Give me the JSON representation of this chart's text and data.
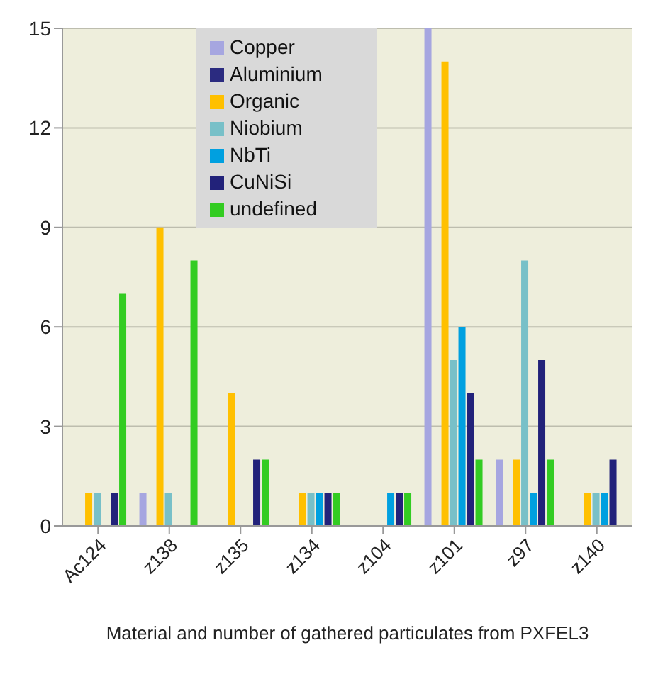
{
  "chart_data": {
    "type": "bar",
    "xlabel": "Material and number of gathered particulates from PXFEL3",
    "categories": [
      "Ac124",
      "z138",
      "z135",
      "z134",
      "z104",
      "z101",
      "z97",
      "z140"
    ],
    "series": [
      {
        "name": "Copper",
        "color": "#a6a6e0",
        "values": [
          0,
          1,
          0,
          0,
          0,
          15,
          2,
          0
        ]
      },
      {
        "name": "Aluminium",
        "color": "#2b2b80",
        "values": [
          0,
          0,
          0,
          0,
          0,
          0,
          0,
          0
        ]
      },
      {
        "name": "Organic",
        "color": "#ffc000",
        "values": [
          1,
          9,
          4,
          1,
          0,
          14,
          2,
          1
        ]
      },
      {
        "name": "Niobium",
        "color": "#78c0c8",
        "values": [
          1,
          1,
          0,
          1,
          0,
          5,
          8,
          1
        ]
      },
      {
        "name": "NbTi",
        "color": "#00a0e0",
        "values": [
          0,
          0,
          0,
          1,
          1,
          6,
          1,
          1
        ]
      },
      {
        "name": "CuNiSi",
        "color": "#22227a",
        "values": [
          1,
          0,
          2,
          1,
          1,
          4,
          5,
          2
        ]
      },
      {
        "name": "undefined",
        "color": "#33cc22",
        "values": [
          7,
          8,
          2,
          1,
          1,
          2,
          2,
          0
        ]
      }
    ],
    "ylim": [
      0,
      15
    ],
    "yticks": [
      0,
      3,
      6,
      9,
      12,
      15
    ],
    "grid": "y",
    "legend": "top"
  }
}
